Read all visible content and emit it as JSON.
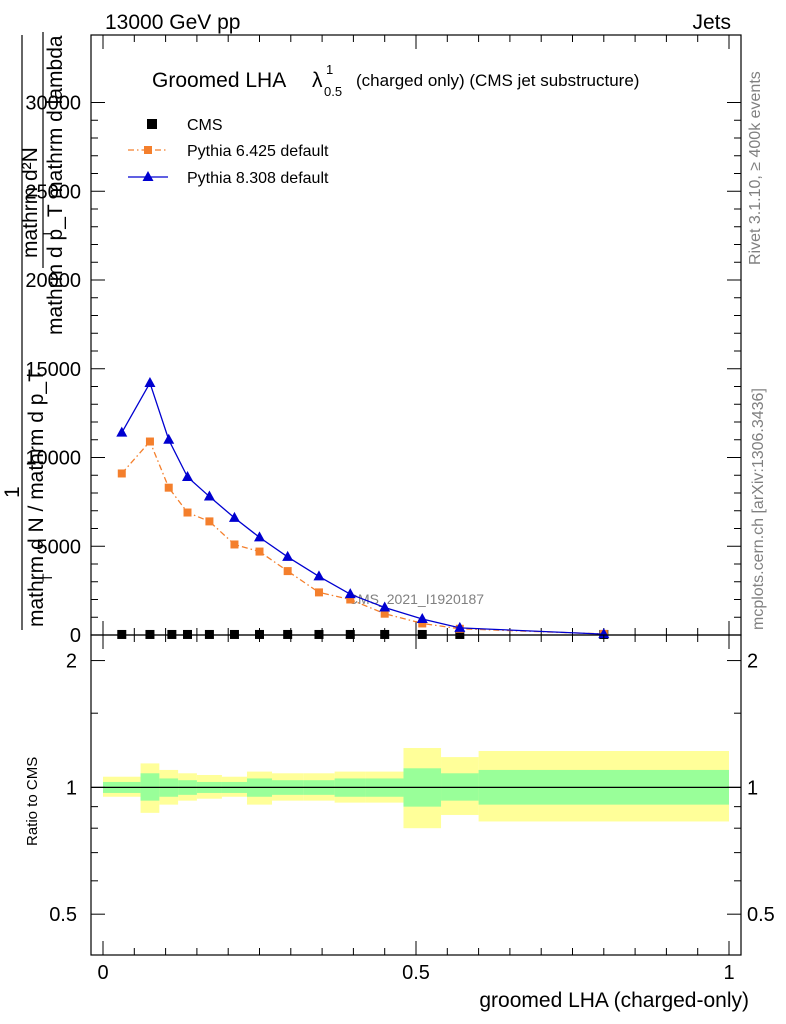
{
  "header": {
    "left": "13000 GeV pp",
    "right": "Jets"
  },
  "side_labels": {
    "rivet": "Rivet 3.1.10, ≥ 400k events",
    "mcplots": "mcplots.cern.ch [arXiv:1306.3436]"
  },
  "chart_data": [
    {
      "type": "line",
      "title": "Groomed LHA",
      "title_lambda": "λ",
      "title_sup": "1",
      "title_sub": "0.5",
      "title_suffix": "(charged only) (CMS jet substructure)",
      "ylabel_top_num": "mathrm d²N",
      "ylabel_top_den": "mathrm d p_T mathrm d lambda",
      "ylabel_top_sub": "T",
      "ylabel_main_num": "1",
      "ylabel_main_den": "mathrm d N / mathrm d p_T",
      "ylabel_main_den_sub": "T",
      "watermark": "CMS_2021_I1920187",
      "xlim": [
        0,
        1
      ],
      "ylim": [
        0,
        32000
      ],
      "yticks": [
        0,
        5000,
        10000,
        15000,
        20000,
        25000,
        30000
      ],
      "ytick_labels": [
        "0",
        "5000",
        "10000",
        "15000",
        "20000",
        "25000",
        "30000"
      ],
      "legend_position": "top-left",
      "series": [
        {
          "name": "CMS",
          "color": "#000000",
          "marker": "square",
          "x": [
            0.03,
            0.075,
            0.11,
            0.135,
            0.17,
            0.21,
            0.25,
            0.295,
            0.345,
            0.395,
            0.45,
            0.51,
            0.57,
            0.8
          ],
          "y": [
            30,
            30,
            30,
            30,
            30,
            30,
            30,
            30,
            30,
            30,
            30,
            30,
            30,
            30
          ]
        },
        {
          "name": "Pythia 6.425 default",
          "color": "#f47f2c",
          "marker": "square",
          "line": "dashdot",
          "x": [
            0.03,
            0.075,
            0.105,
            0.135,
            0.17,
            0.21,
            0.25,
            0.295,
            0.345,
            0.395,
            0.45,
            0.51,
            0.57,
            0.8
          ],
          "y": [
            9100,
            10900,
            8300,
            6900,
            6400,
            5100,
            4700,
            3600,
            2400,
            2000,
            1200,
            650,
            350,
            60
          ]
        },
        {
          "name": "Pythia 8.308 default",
          "color": "#0000d0",
          "marker": "triangle",
          "line": "solid",
          "x": [
            0.03,
            0.075,
            0.105,
            0.135,
            0.17,
            0.21,
            0.25,
            0.295,
            0.345,
            0.395,
            0.45,
            0.51,
            0.57,
            0.8
          ],
          "y": [
            11400,
            14200,
            11000,
            8900,
            7800,
            6600,
            5500,
            4400,
            3300,
            2300,
            1550,
            900,
            400,
            50
          ]
        }
      ]
    },
    {
      "type": "area",
      "ylabel": "Ratio to CMS",
      "xlabel": "groomed LHA (charged-only)",
      "xlim": [
        0,
        1
      ],
      "ylim": [
        0.4,
        2.3
      ],
      "log_y": true,
      "xticks": [
        0,
        0.5,
        1
      ],
      "xtick_labels": [
        "0",
        "0.5",
        "1"
      ],
      "yticks": [
        0.5,
        1,
        2
      ],
      "ytick_labels": [
        "0.5",
        "1",
        "2"
      ],
      "band_colors": {
        "inner": "#99ff99",
        "outer": "#ffff99"
      },
      "bins": [
        {
          "x0": 0.0,
          "x1": 0.06,
          "inner": [
            0.97,
            1.03
          ],
          "outer": [
            0.95,
            1.06
          ]
        },
        {
          "x0": 0.06,
          "x1": 0.09,
          "inner": [
            0.93,
            1.08
          ],
          "outer": [
            0.87,
            1.14
          ]
        },
        {
          "x0": 0.09,
          "x1": 0.12,
          "inner": [
            0.95,
            1.05
          ],
          "outer": [
            0.91,
            1.1
          ]
        },
        {
          "x0": 0.12,
          "x1": 0.15,
          "inner": [
            0.96,
            1.04
          ],
          "outer": [
            0.93,
            1.08
          ]
        },
        {
          "x0": 0.15,
          "x1": 0.19,
          "inner": [
            0.97,
            1.03
          ],
          "outer": [
            0.94,
            1.07
          ]
        },
        {
          "x0": 0.19,
          "x1": 0.23,
          "inner": [
            0.97,
            1.03
          ],
          "outer": [
            0.95,
            1.06
          ]
        },
        {
          "x0": 0.23,
          "x1": 0.27,
          "inner": [
            0.95,
            1.05
          ],
          "outer": [
            0.91,
            1.09
          ]
        },
        {
          "x0": 0.27,
          "x1": 0.32,
          "inner": [
            0.96,
            1.04
          ],
          "outer": [
            0.93,
            1.08
          ]
        },
        {
          "x0": 0.32,
          "x1": 0.37,
          "inner": [
            0.96,
            1.04
          ],
          "outer": [
            0.93,
            1.08
          ]
        },
        {
          "x0": 0.37,
          "x1": 0.42,
          "inner": [
            0.95,
            1.05
          ],
          "outer": [
            0.92,
            1.09
          ]
        },
        {
          "x0": 0.42,
          "x1": 0.48,
          "inner": [
            0.95,
            1.05
          ],
          "outer": [
            0.92,
            1.09
          ]
        },
        {
          "x0": 0.48,
          "x1": 0.54,
          "inner": [
            0.9,
            1.11
          ],
          "outer": [
            0.8,
            1.24
          ]
        },
        {
          "x0": 0.54,
          "x1": 0.6,
          "inner": [
            0.93,
            1.08
          ],
          "outer": [
            0.86,
            1.18
          ]
        },
        {
          "x0": 0.6,
          "x1": 1.0,
          "inner": [
            0.91,
            1.1
          ],
          "outer": [
            0.83,
            1.22
          ]
        }
      ]
    }
  ]
}
